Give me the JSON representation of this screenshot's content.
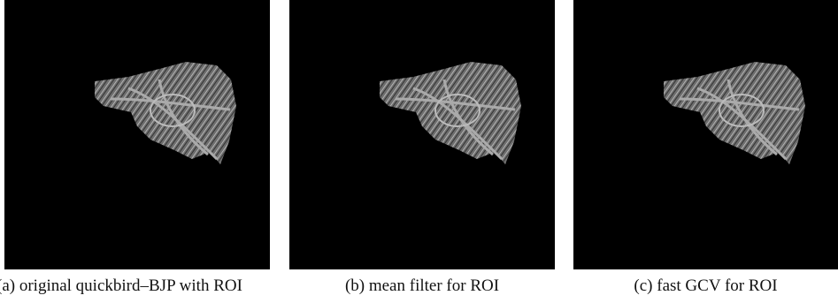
{
  "figure": {
    "panels": [
      {
        "caption": "(a) original quickbird–BJP with ROI"
      },
      {
        "caption": "(b) mean filter for ROI"
      },
      {
        "caption": "(c) fast GCV for ROI"
      }
    ]
  }
}
